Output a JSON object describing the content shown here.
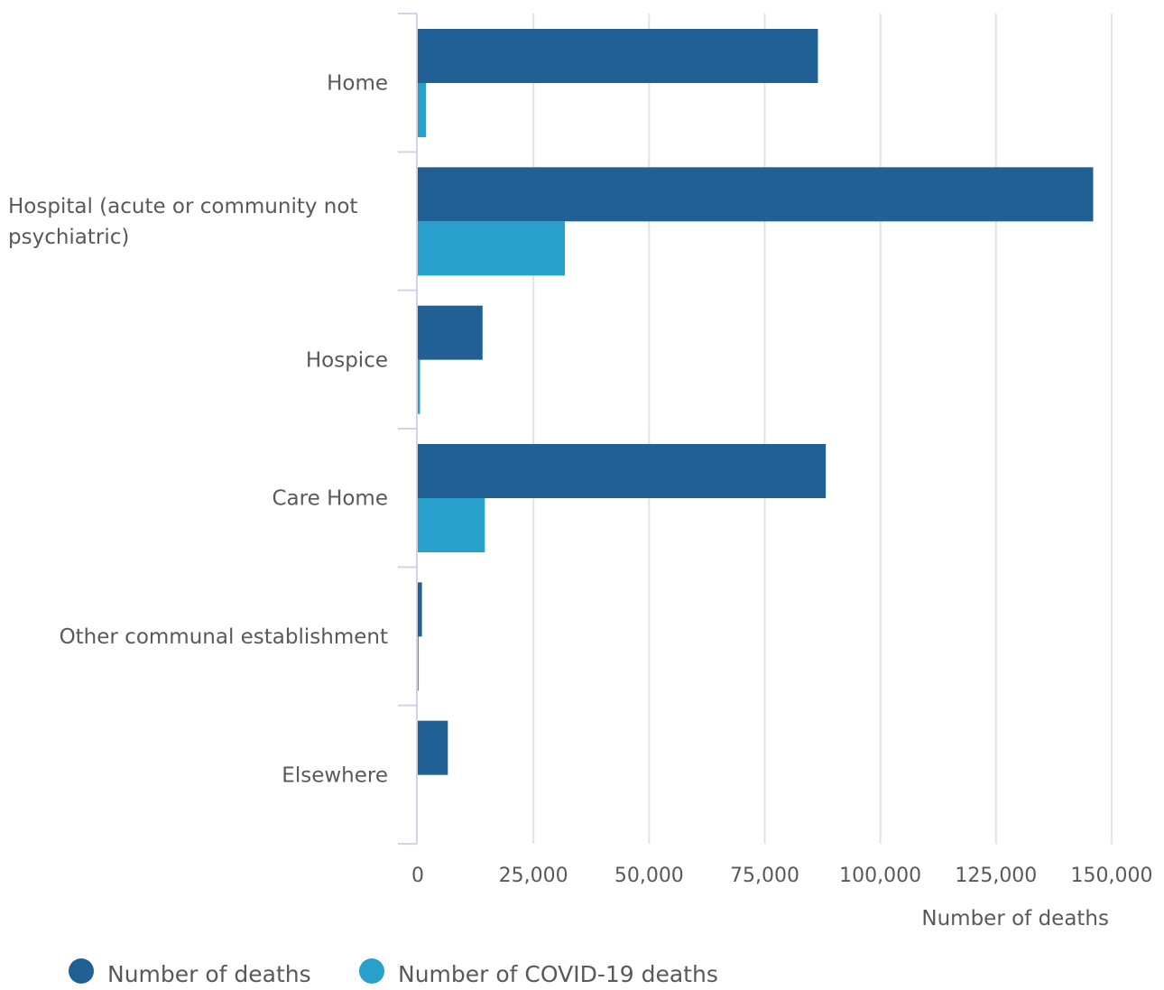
{
  "chart_data": {
    "type": "bar",
    "orientation": "horizontal",
    "categories": [
      "Home",
      "Hospital (acute or community not psychiatric)",
      "Hospice",
      "Care Home",
      "Other communal establishment",
      "Elsewhere"
    ],
    "series": [
      {
        "name": "Number of deaths",
        "color": "#206095",
        "values": [
          86500,
          146000,
          14000,
          88200,
          900,
          6500
        ]
      },
      {
        "name": "Number of COVID-19 deaths",
        "color": "#27A0CC",
        "values": [
          1800,
          31800,
          500,
          14500,
          200,
          0
        ]
      }
    ],
    "xlabel": "Number of deaths",
    "ylabel": "",
    "xlim": [
      0,
      150000
    ],
    "xticks": [
      0,
      25000,
      50000,
      75000,
      100000,
      125000,
      150000
    ],
    "xtick_labels": [
      "0",
      "25,000",
      "50,000",
      "75,000",
      "100,000",
      "125,000",
      "150,000"
    ],
    "grid": true,
    "legend_position": "bottom-left"
  }
}
